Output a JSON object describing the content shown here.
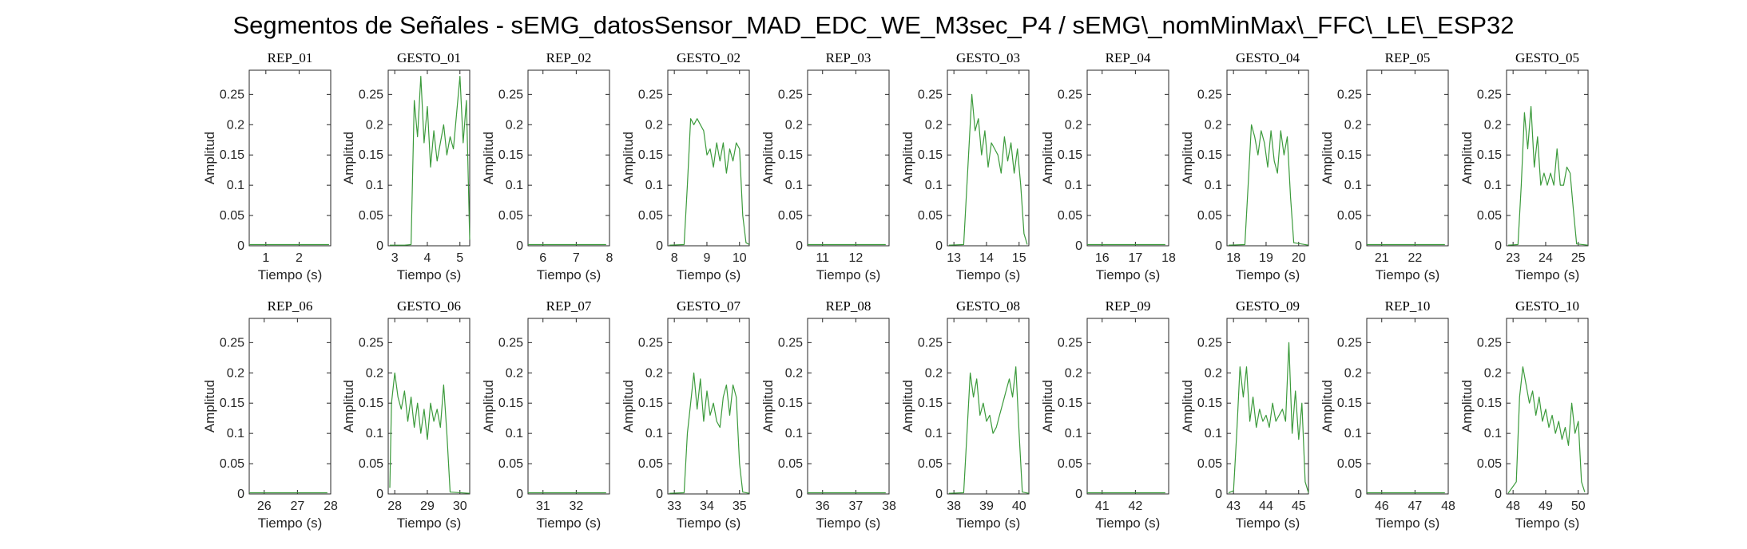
{
  "figure": {
    "title": "Segmentos de Señales - sEMG_datosSensor_MAD_EDC_WE_M3sec_P4 / sEMG\\_nomMinMax\\_FFC\\_LE\\_ESP32"
  },
  "colors": {
    "trace": "#3b9a3b",
    "axes": "#262626"
  },
  "chart_data": [
    {
      "type": "line",
      "title": "REP_01",
      "xlabel": "Tiempo (s)",
      "ylabel": "Amplitud",
      "xlim": [
        0.5,
        2.95
      ],
      "ylim": [
        0,
        0.29
      ],
      "xticks": [
        1,
        2
      ],
      "yticks": [
        0,
        0.05,
        0.1,
        0.15,
        0.2,
        0.25
      ],
      "x": [
        0.5,
        2.9
      ],
      "y": [
        0.002,
        0.002
      ]
    },
    {
      "type": "line",
      "title": "GESTO_01",
      "xlabel": "Tiempo (s)",
      "ylabel": "Amplitud",
      "xlim": [
        2.8,
        5.3
      ],
      "ylim": [
        0,
        0.29
      ],
      "xticks": [
        3,
        4,
        5
      ],
      "yticks": [
        0,
        0.05,
        0.1,
        0.15,
        0.2,
        0.25
      ],
      "x": [
        2.85,
        3.3,
        3.5,
        3.6,
        3.7,
        3.8,
        3.9,
        4.0,
        4.1,
        4.2,
        4.3,
        4.4,
        4.5,
        4.6,
        4.7,
        4.8,
        4.9,
        5.0,
        5.1,
        5.2,
        5.3
      ],
      "y": [
        0.001,
        0.001,
        0.002,
        0.24,
        0.18,
        0.28,
        0.17,
        0.23,
        0.13,
        0.19,
        0.14,
        0.17,
        0.2,
        0.15,
        0.18,
        0.16,
        0.22,
        0.28,
        0.17,
        0.24,
        0.01
      ]
    },
    {
      "type": "line",
      "title": "REP_02",
      "xlabel": "Tiempo (s)",
      "ylabel": "Amplitud",
      "xlim": [
        5.55,
        8.0
      ],
      "ylim": [
        0,
        0.29
      ],
      "xticks": [
        6,
        7,
        8
      ],
      "yticks": [
        0,
        0.05,
        0.1,
        0.15,
        0.2,
        0.25
      ],
      "x": [
        5.55,
        7.9
      ],
      "y": [
        0.002,
        0.002
      ]
    },
    {
      "type": "line",
      "title": "GESTO_02",
      "xlabel": "Tiempo (s)",
      "ylabel": "Amplitud",
      "xlim": [
        7.8,
        10.3
      ],
      "ylim": [
        0,
        0.29
      ],
      "xticks": [
        8,
        9,
        10
      ],
      "yticks": [
        0,
        0.05,
        0.1,
        0.15,
        0.2,
        0.25
      ],
      "x": [
        7.85,
        8.3,
        8.4,
        8.5,
        8.6,
        8.7,
        8.8,
        8.9,
        9.0,
        9.1,
        9.2,
        9.3,
        9.4,
        9.5,
        9.6,
        9.7,
        9.8,
        9.9,
        10.0,
        10.1,
        10.2,
        10.3
      ],
      "y": [
        0.001,
        0.002,
        0.1,
        0.21,
        0.2,
        0.21,
        0.2,
        0.19,
        0.15,
        0.16,
        0.13,
        0.17,
        0.14,
        0.17,
        0.12,
        0.16,
        0.14,
        0.17,
        0.16,
        0.05,
        0.005,
        0.002
      ]
    },
    {
      "type": "line",
      "title": "REP_03",
      "xlabel": "Tiempo (s)",
      "ylabel": "Amplitud",
      "xlim": [
        10.55,
        13.0
      ],
      "ylim": [
        0,
        0.29
      ],
      "xticks": [
        11,
        12
      ],
      "yticks": [
        0,
        0.05,
        0.1,
        0.15,
        0.2,
        0.25
      ],
      "x": [
        10.55,
        12.9
      ],
      "y": [
        0.002,
        0.002
      ]
    },
    {
      "type": "line",
      "title": "GESTO_03",
      "xlabel": "Tiempo (s)",
      "ylabel": "Amplitud",
      "xlim": [
        12.8,
        15.3
      ],
      "ylim": [
        0,
        0.29
      ],
      "xticks": [
        13,
        14,
        15
      ],
      "yticks": [
        0,
        0.05,
        0.1,
        0.15,
        0.2,
        0.25
      ],
      "x": [
        12.85,
        13.3,
        13.45,
        13.55,
        13.65,
        13.75,
        13.85,
        13.95,
        14.05,
        14.15,
        14.25,
        14.35,
        14.45,
        14.55,
        14.65,
        14.75,
        14.85,
        14.95,
        15.05,
        15.15,
        15.25
      ],
      "y": [
        0.001,
        0.002,
        0.15,
        0.25,
        0.19,
        0.21,
        0.15,
        0.19,
        0.13,
        0.17,
        0.16,
        0.15,
        0.12,
        0.18,
        0.14,
        0.17,
        0.12,
        0.16,
        0.1,
        0.02,
        0.002
      ]
    },
    {
      "type": "line",
      "title": "REP_04",
      "xlabel": "Tiempo (s)",
      "ylabel": "Amplitud",
      "xlim": [
        15.55,
        18.0
      ],
      "ylim": [
        0,
        0.29
      ],
      "xticks": [
        16,
        17,
        18
      ],
      "yticks": [
        0,
        0.05,
        0.1,
        0.15,
        0.2,
        0.25
      ],
      "x": [
        15.55,
        17.9
      ],
      "y": [
        0.002,
        0.002
      ]
    },
    {
      "type": "line",
      "title": "GESTO_04",
      "xlabel": "Tiempo (s)",
      "ylabel": "Amplitud",
      "xlim": [
        17.8,
        20.3
      ],
      "ylim": [
        0,
        0.29
      ],
      "xticks": [
        18,
        19,
        20
      ],
      "yticks": [
        0,
        0.05,
        0.1,
        0.15,
        0.2,
        0.25
      ],
      "x": [
        17.85,
        18.35,
        18.45,
        18.55,
        18.65,
        18.75,
        18.85,
        18.95,
        19.05,
        19.15,
        19.25,
        19.35,
        19.45,
        19.55,
        19.65,
        19.75,
        19.85,
        20.3
      ],
      "y": [
        0.001,
        0.002,
        0.1,
        0.2,
        0.18,
        0.15,
        0.19,
        0.17,
        0.13,
        0.19,
        0.14,
        0.12,
        0.19,
        0.15,
        0.18,
        0.08,
        0.005,
        0.001
      ]
    },
    {
      "type": "line",
      "title": "REP_05",
      "xlabel": "Tiempo (s)",
      "ylabel": "Amplitud",
      "xlim": [
        20.55,
        23.0
      ],
      "ylim": [
        0,
        0.29
      ],
      "xticks": [
        21,
        22
      ],
      "yticks": [
        0,
        0.05,
        0.1,
        0.15,
        0.2,
        0.25
      ],
      "x": [
        20.55,
        22.9
      ],
      "y": [
        0.002,
        0.002
      ]
    },
    {
      "type": "line",
      "title": "GESTO_05",
      "xlabel": "Tiempo (s)",
      "ylabel": "Amplitud",
      "xlim": [
        22.8,
        25.3
      ],
      "ylim": [
        0,
        0.29
      ],
      "xticks": [
        23,
        24,
        25
      ],
      "yticks": [
        0,
        0.05,
        0.1,
        0.15,
        0.2,
        0.25
      ],
      "x": [
        22.85,
        23.15,
        23.25,
        23.35,
        23.45,
        23.55,
        23.65,
        23.75,
        23.85,
        23.95,
        24.05,
        24.15,
        24.25,
        24.35,
        24.45,
        24.55,
        24.65,
        24.75,
        24.85,
        24.95,
        25.3
      ],
      "y": [
        0.001,
        0.002,
        0.1,
        0.22,
        0.16,
        0.23,
        0.13,
        0.18,
        0.1,
        0.12,
        0.1,
        0.12,
        0.1,
        0.16,
        0.1,
        0.1,
        0.13,
        0.12,
        0.06,
        0.003,
        0.001
      ]
    },
    {
      "type": "line",
      "title": "REP_06",
      "xlabel": "Tiempo (s)",
      "ylabel": "Amplitud",
      "xlim": [
        25.55,
        28.0
      ],
      "ylim": [
        0,
        0.29
      ],
      "xticks": [
        26,
        27,
        28
      ],
      "yticks": [
        0,
        0.05,
        0.1,
        0.15,
        0.2,
        0.25
      ],
      "x": [
        25.55,
        27.9
      ],
      "y": [
        0.002,
        0.002
      ]
    },
    {
      "type": "line",
      "title": "GESTO_06",
      "xlabel": "Tiempo (s)",
      "ylabel": "Amplitud",
      "xlim": [
        27.8,
        30.3
      ],
      "ylim": [
        0,
        0.29
      ],
      "xticks": [
        28,
        29,
        30
      ],
      "yticks": [
        0,
        0.05,
        0.1,
        0.15,
        0.2,
        0.25
      ],
      "x": [
        27.85,
        27.9,
        28.0,
        28.1,
        28.2,
        28.3,
        28.4,
        28.5,
        28.6,
        28.7,
        28.8,
        28.9,
        29.0,
        29.1,
        29.2,
        29.3,
        29.4,
        29.5,
        29.6,
        29.7,
        30.3
      ],
      "y": [
        0.01,
        0.15,
        0.2,
        0.16,
        0.14,
        0.17,
        0.12,
        0.16,
        0.11,
        0.15,
        0.1,
        0.14,
        0.09,
        0.15,
        0.12,
        0.14,
        0.11,
        0.18,
        0.1,
        0.003,
        0.001
      ]
    },
    {
      "type": "line",
      "title": "REP_07",
      "xlabel": "Tiempo (s)",
      "ylabel": "Amplitud",
      "xlim": [
        30.55,
        33.0
      ],
      "ylim": [
        0,
        0.29
      ],
      "xticks": [
        31,
        32
      ],
      "yticks": [
        0,
        0.05,
        0.1,
        0.15,
        0.2,
        0.25
      ],
      "x": [
        30.55,
        32.9
      ],
      "y": [
        0.002,
        0.002
      ]
    },
    {
      "type": "line",
      "title": "GESTO_07",
      "xlabel": "Tiempo (s)",
      "ylabel": "Amplitud",
      "xlim": [
        32.8,
        35.3
      ],
      "ylim": [
        0,
        0.29
      ],
      "xticks": [
        33,
        34,
        35
      ],
      "yticks": [
        0,
        0.05,
        0.1,
        0.15,
        0.2,
        0.25
      ],
      "x": [
        32.85,
        33.3,
        33.4,
        33.5,
        33.6,
        33.7,
        33.8,
        33.9,
        34.0,
        34.1,
        34.2,
        34.3,
        34.4,
        34.5,
        34.6,
        34.7,
        34.8,
        34.9,
        35.0,
        35.1,
        35.3
      ],
      "y": [
        0.001,
        0.002,
        0.1,
        0.15,
        0.2,
        0.14,
        0.19,
        0.12,
        0.17,
        0.13,
        0.15,
        0.12,
        0.11,
        0.16,
        0.18,
        0.13,
        0.18,
        0.16,
        0.05,
        0.003,
        0.001
      ]
    },
    {
      "type": "line",
      "title": "REP_08",
      "xlabel": "Tiempo (s)",
      "ylabel": "Amplitud",
      "xlim": [
        35.55,
        38.0
      ],
      "ylim": [
        0,
        0.29
      ],
      "xticks": [
        36,
        37,
        38
      ],
      "yticks": [
        0,
        0.05,
        0.1,
        0.15,
        0.2,
        0.25
      ],
      "x": [
        35.55,
        37.9
      ],
      "y": [
        0.002,
        0.002
      ]
    },
    {
      "type": "line",
      "title": "GESTO_08",
      "xlabel": "Tiempo (s)",
      "ylabel": "Amplitud",
      "xlim": [
        37.8,
        40.3
      ],
      "ylim": [
        0,
        0.29
      ],
      "xticks": [
        38,
        39,
        40
      ],
      "yticks": [
        0,
        0.05,
        0.1,
        0.15,
        0.2,
        0.25
      ],
      "x": [
        37.85,
        38.3,
        38.4,
        38.5,
        38.6,
        38.7,
        38.8,
        38.9,
        39.0,
        39.1,
        39.2,
        39.3,
        39.4,
        39.5,
        39.6,
        39.7,
        39.8,
        39.9,
        40.0,
        40.1,
        40.3
      ],
      "y": [
        0.001,
        0.002,
        0.1,
        0.2,
        0.16,
        0.19,
        0.13,
        0.15,
        0.12,
        0.13,
        0.1,
        0.11,
        0.13,
        0.15,
        0.17,
        0.19,
        0.16,
        0.21,
        0.1,
        0.003,
        0.001
      ]
    },
    {
      "type": "line",
      "title": "REP_09",
      "xlabel": "Tiempo (s)",
      "ylabel": "Amplitud",
      "xlim": [
        40.55,
        43.0
      ],
      "ylim": [
        0,
        0.29
      ],
      "xticks": [
        41,
        42
      ],
      "yticks": [
        0,
        0.05,
        0.1,
        0.15,
        0.2,
        0.25
      ],
      "x": [
        40.55,
        42.9
      ],
      "y": [
        0.002,
        0.002
      ]
    },
    {
      "type": "line",
      "title": "GESTO_09",
      "xlabel": "Tiempo (s)",
      "ylabel": "Amplitud",
      "xlim": [
        42.8,
        45.3
      ],
      "ylim": [
        0,
        0.29
      ],
      "xticks": [
        43,
        44,
        45
      ],
      "yticks": [
        0,
        0.05,
        0.1,
        0.15,
        0.2,
        0.25
      ],
      "x": [
        42.85,
        43.0,
        43.1,
        43.2,
        43.3,
        43.4,
        43.5,
        43.6,
        43.7,
        43.8,
        43.9,
        44.0,
        44.1,
        44.2,
        44.3,
        44.4,
        44.5,
        44.6,
        44.7,
        44.8,
        44.9,
        45.0,
        45.1,
        45.2,
        45.3
      ],
      "y": [
        0.002,
        0.005,
        0.1,
        0.21,
        0.16,
        0.21,
        0.12,
        0.16,
        0.11,
        0.14,
        0.12,
        0.13,
        0.11,
        0.15,
        0.12,
        0.13,
        0.14,
        0.12,
        0.25,
        0.1,
        0.17,
        0.09,
        0.15,
        0.02,
        0.002
      ]
    },
    {
      "type": "line",
      "title": "REP_10",
      "xlabel": "Tiempo (s)",
      "ylabel": "Amplitud",
      "xlim": [
        45.55,
        48.0
      ],
      "ylim": [
        0,
        0.29
      ],
      "xticks": [
        46,
        47,
        48
      ],
      "yticks": [
        0,
        0.05,
        0.1,
        0.15,
        0.2,
        0.25
      ],
      "x": [
        45.55,
        47.9
      ],
      "y": [
        0.002,
        0.002
      ]
    },
    {
      "type": "line",
      "title": "GESTO_10",
      "xlabel": "Tiempo (s)",
      "ylabel": "Amplitud",
      "xlim": [
        47.8,
        50.3
      ],
      "ylim": [
        0,
        0.29
      ],
      "xticks": [
        48,
        49,
        50
      ],
      "yticks": [
        0,
        0.05,
        0.1,
        0.15,
        0.2,
        0.25
      ],
      "x": [
        47.85,
        48.1,
        48.2,
        48.3,
        48.4,
        48.5,
        48.6,
        48.7,
        48.8,
        48.9,
        49.0,
        49.1,
        49.2,
        49.3,
        49.4,
        49.5,
        49.6,
        49.7,
        49.8,
        49.9,
        50.0,
        50.1,
        50.2
      ],
      "y": [
        0.001,
        0.02,
        0.16,
        0.21,
        0.18,
        0.15,
        0.17,
        0.13,
        0.16,
        0.12,
        0.14,
        0.11,
        0.13,
        0.1,
        0.12,
        0.09,
        0.11,
        0.08,
        0.15,
        0.1,
        0.12,
        0.02,
        0.003
      ]
    }
  ]
}
